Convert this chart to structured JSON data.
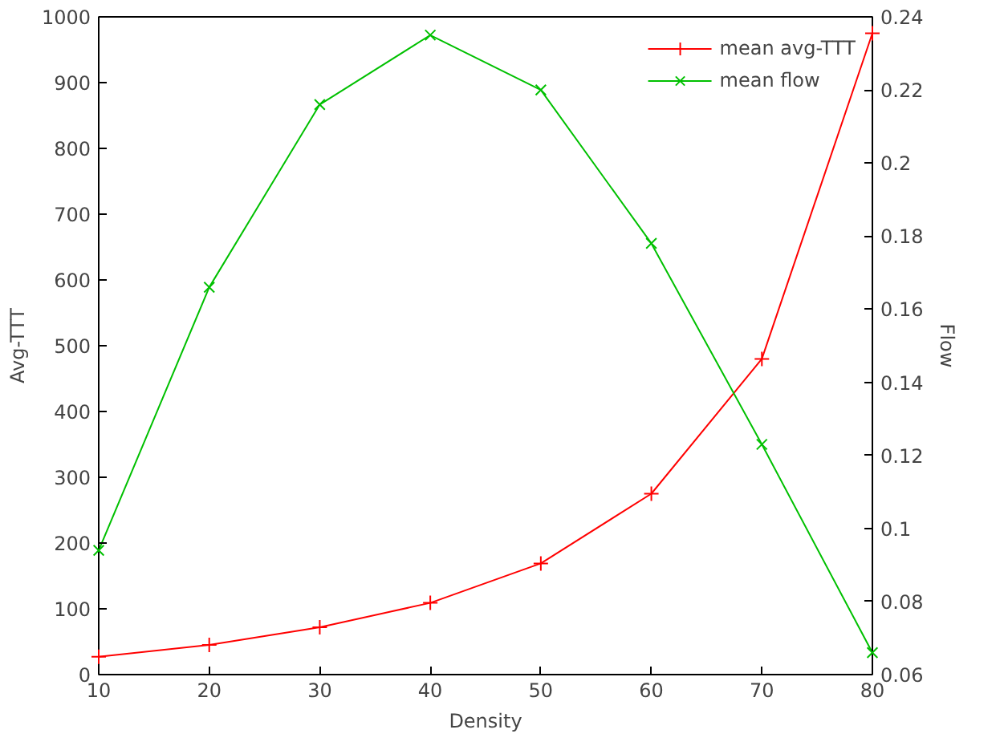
{
  "chart_data": {
    "type": "line",
    "xlabel": "Density",
    "ylabel": "Avg-TTT",
    "y2label": "Flow",
    "x": [
      10,
      20,
      30,
      40,
      50,
      60,
      70,
      80
    ],
    "series": [
      {
        "name": "mean avg-TTT",
        "color": "#ff0000",
        "marker": "cross",
        "values": [
          27,
          45,
          72,
          109,
          169,
          275,
          480,
          975
        ]
      },
      {
        "name": "mean flow",
        "color": "#00c000",
        "marker": "x",
        "axis": "y2",
        "values": [
          0.094,
          0.166,
          0.216,
          0.235,
          0.22,
          0.178,
          0.123,
          0.066
        ]
      }
    ],
    "xlim": [
      10,
      80
    ],
    "xticks": [
      10,
      20,
      30,
      40,
      50,
      60,
      70,
      80
    ],
    "ylim": [
      0,
      1000
    ],
    "yticks": [
      0,
      100,
      200,
      300,
      400,
      500,
      600,
      700,
      800,
      900,
      1000
    ],
    "y2lim": [
      0.06,
      0.24
    ],
    "y2ticks": [
      0.06,
      0.08,
      0.1,
      0.12,
      0.14,
      0.16,
      0.18,
      0.2,
      0.22,
      0.24
    ],
    "grid": false,
    "legend": "top right",
    "line_style": "solid"
  }
}
